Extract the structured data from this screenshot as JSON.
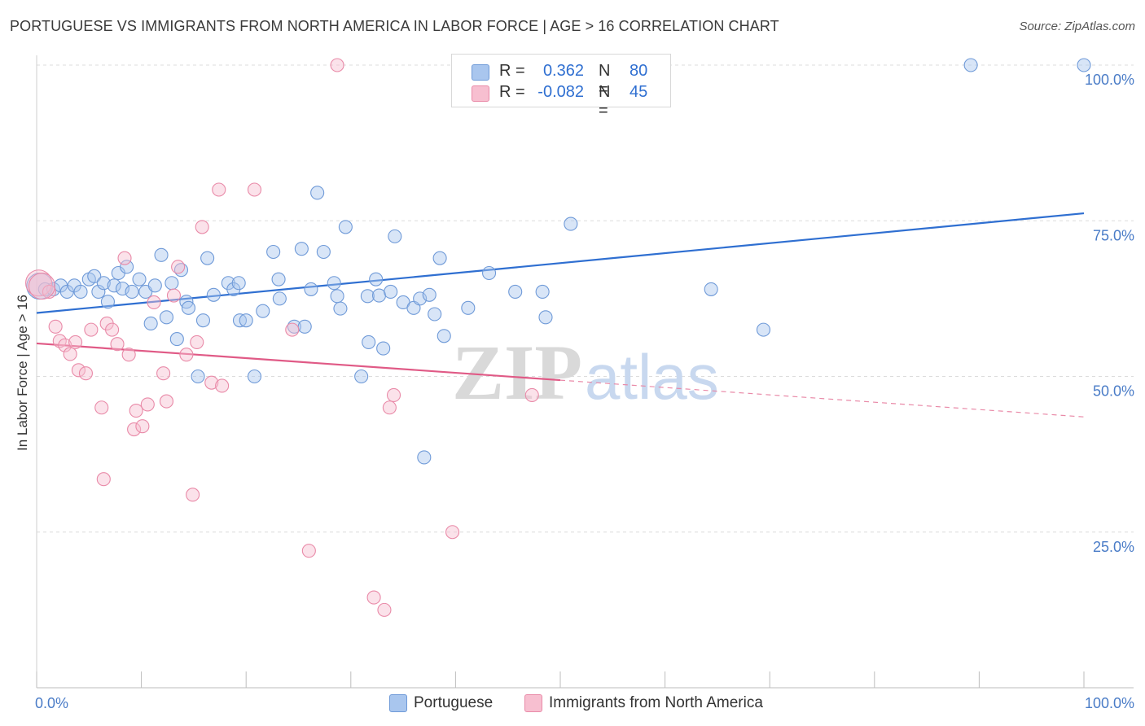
{
  "title": "PORTUGUESE VS IMMIGRANTS FROM NORTH AMERICA IN LABOR FORCE | AGE > 16 CORRELATION CHART",
  "source": "Source: ZipAtlas.com",
  "watermark": {
    "zip": "ZIP",
    "atlas": "atlas"
  },
  "colors": {
    "blue_fill": "#a9c6ee",
    "blue_stroke": "#6f9ad8",
    "blue_line": "#2f6fd1",
    "pink_fill": "#f7bfd0",
    "pink_stroke": "#e98aa8",
    "pink_line": "#e05a86",
    "grid": "#d9d9d9",
    "axis_text": "#4a7cc7"
  },
  "legend_top": {
    "rows": [
      {
        "r_label": "R =",
        "r_value": "0.362",
        "n_label": "N =",
        "n_value": "80",
        "color": "#a9c6ee"
      },
      {
        "r_label": "R =",
        "r_value": "-0.082",
        "n_label": "N =",
        "n_value": "45",
        "color": "#f7bfd0"
      }
    ]
  },
  "legend_bottom": [
    {
      "label": "Portuguese",
      "color": "#a9c6ee"
    },
    {
      "label": "Immigrants from North America",
      "color": "#f7bfd0"
    }
  ],
  "chart_data": {
    "type": "scatter",
    "title": "PORTUGUESE VS IMMIGRANTS FROM NORTH AMERICA IN LABOR FORCE | AGE > 16 CORRELATION CHART",
    "xlabel": "",
    "ylabel": "In Labor Force | Age > 16",
    "xlim": [
      0,
      100
    ],
    "ylim": [
      0,
      100
    ],
    "x_tick_labels": [
      "0.0%",
      "100.0%"
    ],
    "y_ticks": [
      25,
      50,
      75,
      100
    ],
    "y_tick_labels": [
      "25.0%",
      "50.0%",
      "75.0%",
      "100.0%"
    ],
    "grid": true,
    "legend_position": "top-center",
    "series": [
      {
        "name": "Portuguese",
        "color": "#a9c6ee",
        "trend": {
          "x": [
            0,
            100
          ],
          "y": [
            60.2,
            76.2
          ],
          "dashed_from": null
        },
        "points": [
          [
            0.3,
            64.5
          ],
          [
            0.8,
            64.0
          ],
          [
            1.6,
            64.0
          ],
          [
            2.3,
            64.6
          ],
          [
            2.9,
            63.6
          ],
          [
            3.6,
            64.6
          ],
          [
            4.2,
            63.6
          ],
          [
            5.0,
            65.6
          ],
          [
            5.5,
            66.1
          ],
          [
            5.9,
            63.6
          ],
          [
            6.4,
            65.0
          ],
          [
            6.8,
            62.0
          ],
          [
            7.4,
            64.6
          ],
          [
            7.8,
            66.6
          ],
          [
            8.2,
            64.1
          ],
          [
            8.6,
            67.6
          ],
          [
            9.1,
            63.6
          ],
          [
            9.8,
            65.6
          ],
          [
            10.4,
            63.6
          ],
          [
            10.9,
            58.5
          ],
          [
            11.3,
            64.6
          ],
          [
            11.9,
            69.5
          ],
          [
            12.4,
            59.5
          ],
          [
            12.9,
            65.0
          ],
          [
            13.4,
            56.0
          ],
          [
            13.8,
            67.1
          ],
          [
            14.3,
            62.0
          ],
          [
            14.5,
            61.0
          ],
          [
            15.4,
            50.0
          ],
          [
            15.9,
            59.0
          ],
          [
            16.3,
            69.0
          ],
          [
            16.9,
            63.1
          ],
          [
            18.3,
            65.0
          ],
          [
            18.8,
            64.0
          ],
          [
            19.3,
            65.0
          ],
          [
            19.4,
            59.0
          ],
          [
            20.0,
            59.0
          ],
          [
            20.8,
            50.0
          ],
          [
            21.6,
            60.5
          ],
          [
            22.6,
            70.0
          ],
          [
            23.1,
            65.6
          ],
          [
            23.2,
            62.5
          ],
          [
            24.6,
            58.0
          ],
          [
            25.3,
            70.5
          ],
          [
            25.6,
            58.0
          ],
          [
            26.2,
            64.0
          ],
          [
            26.8,
            79.5
          ],
          [
            27.4,
            70.0
          ],
          [
            28.4,
            65.0
          ],
          [
            28.7,
            62.9
          ],
          [
            29.0,
            60.9
          ],
          [
            29.5,
            74.0
          ],
          [
            31.0,
            50.0
          ],
          [
            31.6,
            62.9
          ],
          [
            31.7,
            55.5
          ],
          [
            32.4,
            65.6
          ],
          [
            32.7,
            63.0
          ],
          [
            33.1,
            54.5
          ],
          [
            33.8,
            63.6
          ],
          [
            34.2,
            72.5
          ],
          [
            35.0,
            61.9
          ],
          [
            36.0,
            61.0
          ],
          [
            36.6,
            62.5
          ],
          [
            37.0,
            37.0
          ],
          [
            37.5,
            63.1
          ],
          [
            38.0,
            60.0
          ],
          [
            38.5,
            69.0
          ],
          [
            38.9,
            56.5
          ],
          [
            41.2,
            61.0
          ],
          [
            43.2,
            66.6
          ],
          [
            45.7,
            63.6
          ],
          [
            48.3,
            63.6
          ],
          [
            48.6,
            59.5
          ],
          [
            51.0,
            74.5
          ],
          [
            64.4,
            64.0
          ],
          [
            69.4,
            57.5
          ],
          [
            89.2,
            100.0
          ],
          [
            100.0,
            100.0
          ]
        ]
      },
      {
        "name": "Immigrants from North America",
        "color": "#f7bfd0",
        "trend": {
          "x": [
            0,
            100
          ],
          "y": [
            55.3,
            43.5
          ],
          "dashed_from": 50.0
        },
        "points": [
          [
            0.2,
            65.0
          ],
          [
            1.2,
            63.6
          ],
          [
            1.8,
            58.0
          ],
          [
            2.2,
            55.7
          ],
          [
            2.7,
            55.0
          ],
          [
            3.2,
            53.6
          ],
          [
            3.7,
            55.5
          ],
          [
            4.0,
            51.0
          ],
          [
            4.7,
            50.5
          ],
          [
            5.2,
            57.5
          ],
          [
            6.2,
            45.0
          ],
          [
            6.4,
            33.5
          ],
          [
            6.7,
            58.5
          ],
          [
            7.2,
            57.5
          ],
          [
            7.7,
            55.2
          ],
          [
            8.4,
            69.0
          ],
          [
            8.8,
            53.5
          ],
          [
            9.3,
            41.5
          ],
          [
            9.5,
            44.5
          ],
          [
            10.1,
            42.0
          ],
          [
            10.6,
            45.5
          ],
          [
            11.2,
            61.9
          ],
          [
            12.1,
            50.5
          ],
          [
            12.4,
            46.0
          ],
          [
            13.1,
            63.0
          ],
          [
            13.5,
            67.6
          ],
          [
            14.3,
            53.5
          ],
          [
            14.9,
            31.0
          ],
          [
            15.3,
            55.5
          ],
          [
            15.8,
            74.0
          ],
          [
            16.7,
            49.0
          ],
          [
            17.4,
            80.0
          ],
          [
            17.7,
            48.5
          ],
          [
            20.8,
            80.0
          ],
          [
            24.4,
            57.5
          ],
          [
            26.0,
            22.0
          ],
          [
            28.7,
            100.0
          ],
          [
            32.2,
            14.5
          ],
          [
            33.2,
            12.5
          ],
          [
            33.7,
            45.0
          ],
          [
            34.1,
            47.0
          ],
          [
            39.7,
            25.0
          ],
          [
            47.3,
            47.0
          ],
          [
            50.0,
            100.0
          ],
          [
            0.5,
            64.5
          ]
        ]
      }
    ]
  }
}
